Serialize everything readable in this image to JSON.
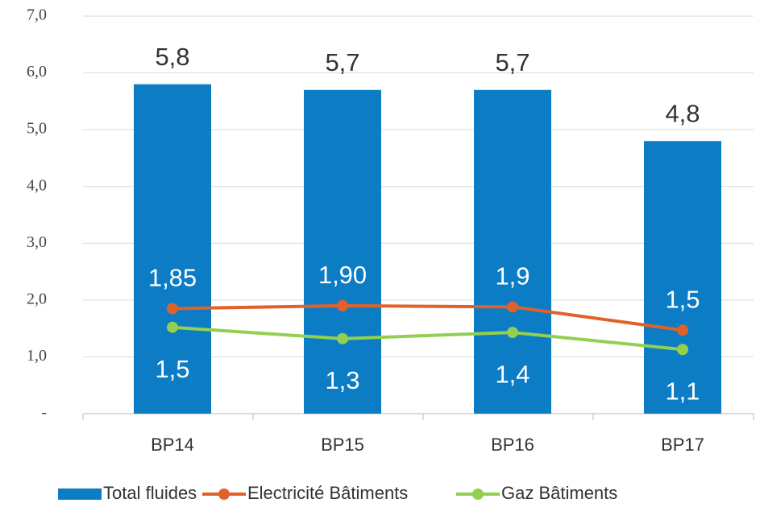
{
  "chart_data": {
    "type": "bar",
    "categories": [
      "BP14",
      "BP15",
      "BP16",
      "BP17"
    ],
    "series": [
      {
        "name": "Total fluides",
        "type": "bar",
        "color": "#0c7cc4",
        "values": [
          5.8,
          5.7,
          5.7,
          4.8
        ],
        "value_labels": [
          "5,8",
          "5,7",
          "5,7",
          "4,8"
        ]
      },
      {
        "name": "Electricité Bâtiments",
        "type": "line",
        "color": "#e0622a",
        "values": [
          1.85,
          1.9,
          1.88,
          1.47
        ],
        "value_labels": [
          "1,85",
          "1,90",
          "1,9",
          "1,5"
        ]
      },
      {
        "name": "Gaz Bâtiments",
        "type": "line",
        "color": "#92d050",
        "values": [
          1.52,
          1.32,
          1.43,
          1.13
        ],
        "value_labels": [
          "1,5",
          "1,3",
          "1,4",
          "1,1"
        ]
      }
    ],
    "ylim": [
      0,
      7
    ],
    "yticks": [
      {
        "value": 0,
        "label": "-"
      },
      {
        "value": 1,
        "label": "1,0"
      },
      {
        "value": 2,
        "label": "2,0"
      },
      {
        "value": 3,
        "label": "3,0"
      },
      {
        "value": 4,
        "label": "4,0"
      },
      {
        "value": 5,
        "label": "5,0"
      },
      {
        "value": 6,
        "label": "6,0"
      },
      {
        "value": 7,
        "label": "7,0"
      }
    ],
    "grid": true
  }
}
